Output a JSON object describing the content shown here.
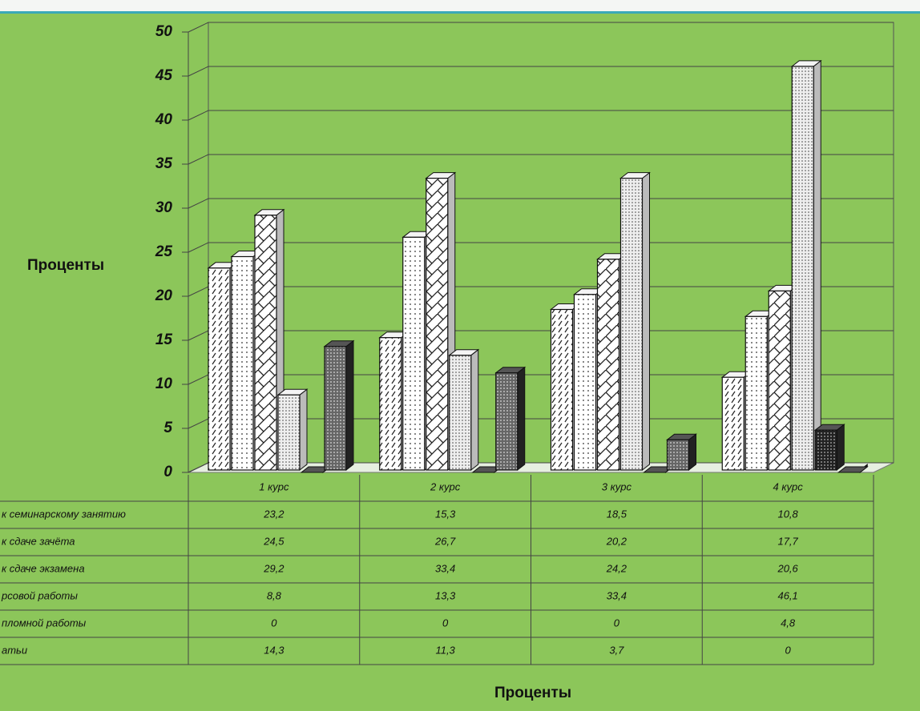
{
  "chart_data": {
    "type": "bar3d",
    "ylabel": "Проценты",
    "xlabel": "Проценты",
    "categories": [
      "1 курс",
      "2 курс",
      "3 курс",
      "4 курс"
    ],
    "series": [
      {
        "name": "к семинарскому занятию",
        "color": "#ffffff",
        "values": [
          23.2,
          15.3,
          18.5,
          10.8
        ],
        "value_labels": [
          "23,2",
          "15,3",
          "18,5",
          "10,8"
        ]
      },
      {
        "name": "к сдаче зачёта",
        "color": "#ffffff",
        "values": [
          24.5,
          26.7,
          20.2,
          17.7
        ],
        "value_labels": [
          "24,5",
          "26,7",
          "20,2",
          "17,7"
        ]
      },
      {
        "name": "к сдаче экзамена",
        "color": "#ffffff",
        "values": [
          29.2,
          33.4,
          24.2,
          20.6
        ],
        "value_labels": [
          "29,2",
          "33,4",
          "24,2",
          "20,6"
        ]
      },
      {
        "name": "рсовой работы",
        "color": "#ffffff",
        "values": [
          8.8,
          13.3,
          33.4,
          46.1
        ],
        "value_labels": [
          "8,8",
          "13,3",
          "33,4",
          "46,1"
        ]
      },
      {
        "name": "пломной работы",
        "color": "#333333",
        "values": [
          0,
          0,
          0,
          4.8
        ],
        "value_labels": [
          "0",
          "0",
          "0",
          "4,8"
        ]
      },
      {
        "name": "атьи",
        "color": "#777777",
        "values": [
          14.3,
          11.3,
          3.7,
          0
        ],
        "value_labels": [
          "14,3",
          "11,3",
          "3,7",
          "0"
        ]
      }
    ],
    "ylim": [
      0,
      50
    ],
    "yticks": [
      0,
      5,
      10,
      15,
      20,
      25,
      30,
      35,
      40,
      45,
      50
    ],
    "grid": true
  }
}
